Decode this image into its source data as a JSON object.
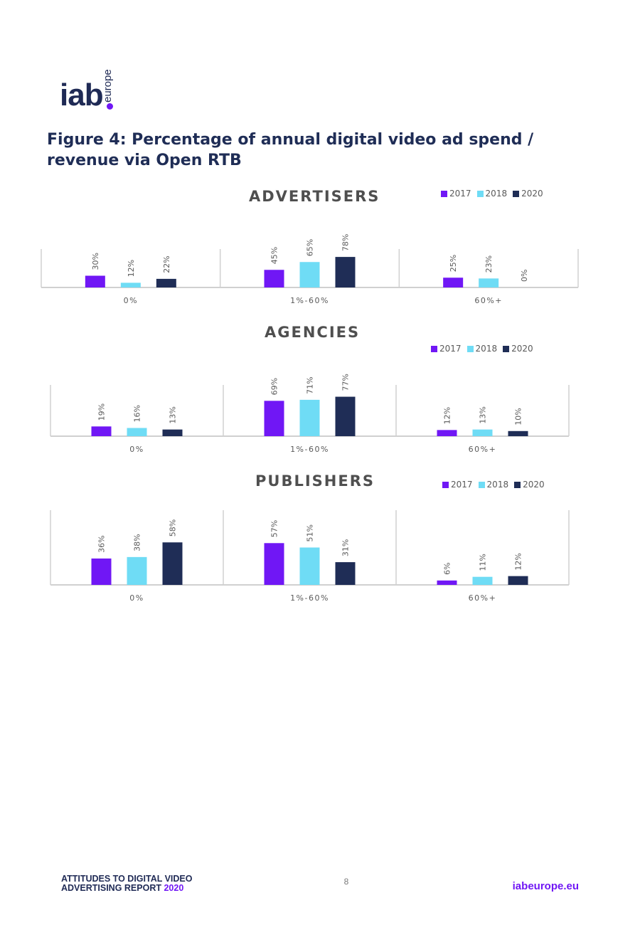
{
  "logo": {
    "main": "iab",
    "sub": "europe"
  },
  "figure_title": "Figure 4: Percentage of annual digital video ad spend / revenue via Open RTB",
  "colors": {
    "2017": "#7017f5",
    "2018": "#6fdcf5",
    "2020": "#1f2d56"
  },
  "chart_data": [
    {
      "type": "bar",
      "title": "ADVERTISERS",
      "categories": [
        "0%",
        "1%-60%",
        "60%+"
      ],
      "series": [
        {
          "name": "2017",
          "values": [
            30,
            45,
            25
          ]
        },
        {
          "name": "2018",
          "values": [
            12,
            65,
            23
          ]
        },
        {
          "name": "2020",
          "values": [
            22,
            78,
            0
          ]
        }
      ],
      "data_labels": [
        [
          "30%",
          "45%",
          "25%"
        ],
        [
          "12%",
          "65%",
          "23%"
        ],
        [
          "22%",
          "78%",
          "0%"
        ]
      ],
      "ylim": [
        0,
        100
      ],
      "legend": "top-right",
      "grid": false
    },
    {
      "type": "bar",
      "title": "AGENCIES",
      "categories": [
        "0%",
        "1%-60%",
        "60%+"
      ],
      "series": [
        {
          "name": "2017",
          "values": [
            19,
            69,
            12
          ]
        },
        {
          "name": "2018",
          "values": [
            16,
            71,
            13
          ]
        },
        {
          "name": "2020",
          "values": [
            13,
            77,
            10
          ]
        }
      ],
      "data_labels": [
        [
          "19%",
          "69%",
          "12%"
        ],
        [
          "16%",
          "71%",
          "13%"
        ],
        [
          "13%",
          "77%",
          "10%"
        ]
      ],
      "ylim": [
        0,
        100
      ],
      "legend": "top-right",
      "grid": false
    },
    {
      "type": "bar",
      "title": "PUBLISHERS",
      "categories": [
        "0%",
        "1%-60%",
        "60%+"
      ],
      "series": [
        {
          "name": "2017",
          "values": [
            36,
            57,
            6
          ]
        },
        {
          "name": "2018",
          "values": [
            38,
            51,
            11
          ]
        },
        {
          "name": "2020",
          "values": [
            58,
            31,
            12
          ]
        }
      ],
      "data_labels": [
        [
          "36%",
          "57%",
          "6%"
        ],
        [
          "38%",
          "51%",
          "11%"
        ],
        [
          "58%",
          "31%",
          "12%"
        ]
      ],
      "ylim": [
        0,
        100
      ],
      "legend": "top-right",
      "grid": false
    }
  ],
  "footer": {
    "line1": "ATTITUDES TO DIGITAL VIDEO",
    "line2": "ADVERTISING REPORT",
    "year": "2020",
    "page_number": "8",
    "website": "iabeurope.eu"
  }
}
